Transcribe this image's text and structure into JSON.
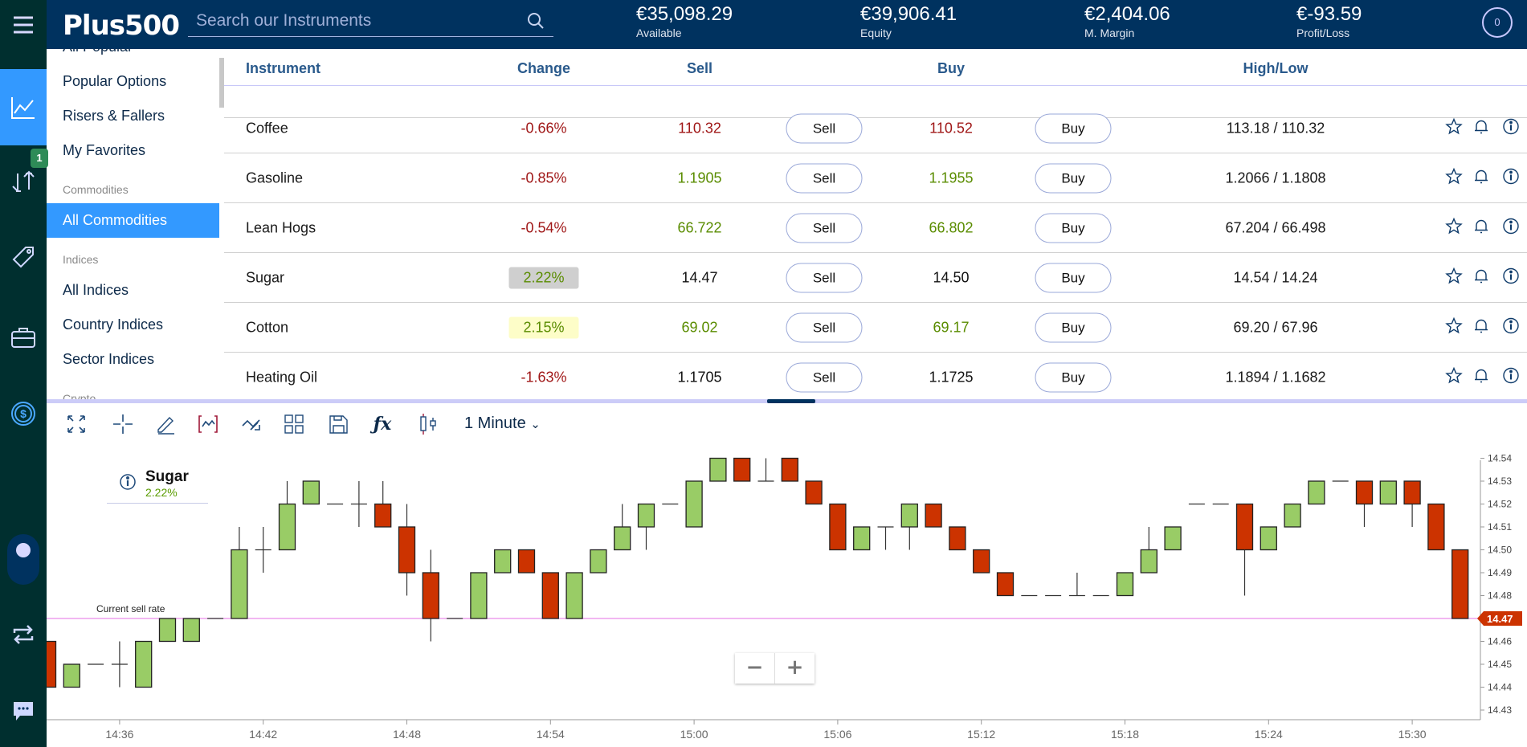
{
  "header": {
    "logo": "Plus500",
    "search_placeholder": "Search our Instruments",
    "stats": [
      {
        "value": "€35,098.29",
        "label": "Available"
      },
      {
        "value": "€39,906.41",
        "label": "Equity"
      },
      {
        "value": "€2,404.06",
        "label": "M. Margin"
      },
      {
        "value": "€-93.59",
        "label": "Profit/Loss"
      }
    ],
    "notifications": "0"
  },
  "rail": {
    "badge": "1"
  },
  "menu": [
    {
      "type": "item",
      "label": "All Popular"
    },
    {
      "type": "item",
      "label": "Popular Options"
    },
    {
      "type": "item",
      "label": "Risers & Fallers"
    },
    {
      "type": "item",
      "label": "My Favorites"
    },
    {
      "type": "header",
      "label": "Commodities"
    },
    {
      "type": "item",
      "label": "All Commodities",
      "active": true
    },
    {
      "type": "header",
      "label": "Indices"
    },
    {
      "type": "item",
      "label": "All Indices"
    },
    {
      "type": "item",
      "label": "Country Indices"
    },
    {
      "type": "item",
      "label": "Sector Indices"
    },
    {
      "type": "header",
      "label": "Crypto"
    }
  ],
  "table": {
    "columns": [
      "Instrument",
      "Change",
      "Sell",
      "Buy",
      "High/Low"
    ],
    "sell_label": "Sell",
    "buy_label": "Buy",
    "rows": [
      {
        "name": "Coffee",
        "change": "-0.66%",
        "sell": "110.32",
        "buy": "110.52",
        "highlow": "113.18 / 110.32",
        "dir": "red",
        "hl": ""
      },
      {
        "name": "Gasoline",
        "change": "-0.85%",
        "sell": "1.1905",
        "buy": "1.1955",
        "highlow": "1.2066 / 1.1808",
        "dir": "green",
        "hl": ""
      },
      {
        "name": "Lean Hogs",
        "change": "-0.54%",
        "sell": "66.722",
        "buy": "66.802",
        "highlow": "67.204 / 66.498",
        "dir": "green",
        "hl": ""
      },
      {
        "name": "Sugar",
        "change": "2.22%",
        "sell": "14.47",
        "buy": "14.50",
        "highlow": "14.54 / 14.24",
        "dir": "black",
        "hl": "grey"
      },
      {
        "name": "Cotton",
        "change": "2.15%",
        "sell": "69.02",
        "buy": "69.17",
        "highlow": "69.20 / 67.96",
        "dir": "green",
        "hl": "yellow"
      },
      {
        "name": "Heating Oil",
        "change": "-1.63%",
        "sell": "1.1705",
        "buy": "1.1725",
        "highlow": "1.1894 / 1.1682",
        "dir": "black",
        "hl": ""
      }
    ]
  },
  "toolbar": {
    "interval": "1 Minute"
  },
  "chart_data": {
    "type": "candlestick",
    "instrument": "Sugar",
    "change": "2.22%",
    "current_sell_label": "Current sell rate",
    "current_sell": 14.47,
    "current_sell_text": "14.47",
    "ylim": [
      14.425,
      14.545
    ],
    "yticks": [
      "14.54",
      "14.53",
      "14.52",
      "14.51",
      "14.50",
      "14.49",
      "14.48",
      "14.46",
      "14.45",
      "14.44",
      "14.43"
    ],
    "xticks": [
      "14:36",
      "14:42",
      "14:48",
      "14:54",
      "15:00",
      "15:06",
      "15:12",
      "15:18",
      "15:24",
      "15:30"
    ],
    "start_minute": "14:33",
    "candles": [
      [
        14.46,
        14.46,
        14.44,
        14.44
      ],
      [
        14.44,
        14.45,
        14.44,
        14.45
      ],
      [
        14.45,
        14.45,
        14.45,
        14.45
      ],
      [
        14.45,
        14.46,
        14.44,
        14.45
      ],
      [
        14.44,
        14.46,
        14.44,
        14.46
      ],
      [
        14.46,
        14.47,
        14.46,
        14.47
      ],
      [
        14.46,
        14.47,
        14.46,
        14.47
      ],
      [
        14.47,
        14.47,
        14.47,
        14.47
      ],
      [
        14.47,
        14.51,
        14.47,
        14.5
      ],
      [
        14.5,
        14.51,
        14.49,
        14.5
      ],
      [
        14.5,
        14.53,
        14.5,
        14.52
      ],
      [
        14.52,
        14.53,
        14.52,
        14.53
      ],
      [
        14.52,
        14.52,
        14.52,
        14.52
      ],
      [
        14.52,
        14.53,
        14.51,
        14.52
      ],
      [
        14.52,
        14.53,
        14.51,
        14.51
      ],
      [
        14.51,
        14.52,
        14.48,
        14.49
      ],
      [
        14.49,
        14.5,
        14.46,
        14.47
      ],
      [
        14.47,
        14.47,
        14.47,
        14.47
      ],
      [
        14.47,
        14.49,
        14.47,
        14.49
      ],
      [
        14.49,
        14.5,
        14.49,
        14.5
      ],
      [
        14.5,
        14.5,
        14.49,
        14.49
      ],
      [
        14.49,
        14.49,
        14.47,
        14.47
      ],
      [
        14.47,
        14.49,
        14.47,
        14.49
      ],
      [
        14.49,
        14.5,
        14.49,
        14.5
      ],
      [
        14.5,
        14.52,
        14.5,
        14.51
      ],
      [
        14.51,
        14.52,
        14.5,
        14.52
      ],
      [
        14.52,
        14.52,
        14.52,
        14.52
      ],
      [
        14.51,
        14.53,
        14.51,
        14.53
      ],
      [
        14.53,
        14.54,
        14.53,
        14.54
      ],
      [
        14.54,
        14.54,
        14.53,
        14.53
      ],
      [
        14.53,
        14.54,
        14.53,
        14.53
      ],
      [
        14.54,
        14.54,
        14.53,
        14.53
      ],
      [
        14.53,
        14.53,
        14.52,
        14.52
      ],
      [
        14.52,
        14.52,
        14.5,
        14.5
      ],
      [
        14.5,
        14.51,
        14.5,
        14.51
      ],
      [
        14.51,
        14.51,
        14.5,
        14.51
      ],
      [
        14.51,
        14.52,
        14.5,
        14.52
      ],
      [
        14.52,
        14.52,
        14.51,
        14.51
      ],
      [
        14.51,
        14.51,
        14.5,
        14.5
      ],
      [
        14.5,
        14.5,
        14.49,
        14.49
      ],
      [
        14.49,
        14.49,
        14.48,
        14.48
      ],
      [
        14.48,
        14.48,
        14.48,
        14.48
      ],
      [
        14.48,
        14.48,
        14.48,
        14.48
      ],
      [
        14.48,
        14.49,
        14.48,
        14.48
      ],
      [
        14.48,
        14.48,
        14.48,
        14.48
      ],
      [
        14.48,
        14.49,
        14.48,
        14.49
      ],
      [
        14.49,
        14.51,
        14.49,
        14.5
      ],
      [
        14.5,
        14.51,
        14.5,
        14.51
      ],
      [
        14.52,
        14.52,
        14.52,
        14.52
      ],
      [
        14.52,
        14.52,
        14.52,
        14.52
      ],
      [
        14.52,
        14.52,
        14.48,
        14.5
      ],
      [
        14.5,
        14.51,
        14.5,
        14.51
      ],
      [
        14.51,
        14.52,
        14.51,
        14.52
      ],
      [
        14.52,
        14.53,
        14.52,
        14.53
      ],
      [
        14.53,
        14.53,
        14.53,
        14.53
      ],
      [
        14.53,
        14.53,
        14.51,
        14.52
      ],
      [
        14.52,
        14.53,
        14.52,
        14.53
      ],
      [
        14.53,
        14.53,
        14.51,
        14.52
      ],
      [
        14.52,
        14.52,
        14.5,
        14.5
      ],
      [
        14.5,
        14.5,
        14.47,
        14.47
      ]
    ],
    "colors": {
      "up": "#99cc66",
      "down": "#cc3300",
      "sell_line": "#e98ce9"
    }
  }
}
